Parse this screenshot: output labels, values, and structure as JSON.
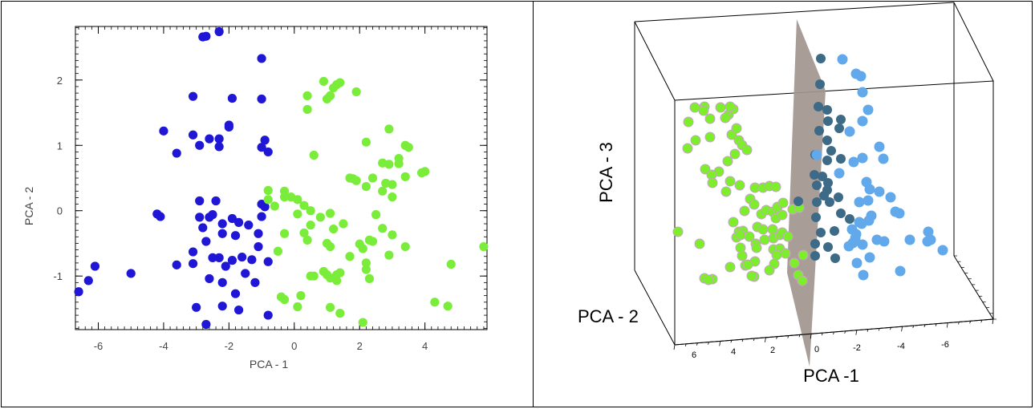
{
  "chart_data": [
    {
      "type": "scatter",
      "xlabel": "PCA - 1",
      "ylabel": "PCA - 2",
      "xlim": [
        -6.7,
        5.9
      ],
      "ylim": [
        -1.82,
        2.82
      ],
      "x_ticks": [
        -6,
        -4,
        -2,
        0,
        2,
        4
      ],
      "y_ticks": [
        -1,
        0,
        1,
        2
      ],
      "grid": false,
      "colors": [
        "#1f16d6",
        "#7aec3a"
      ],
      "series": [
        {
          "color": "#1f16d6",
          "points": [
            [
              -2.7,
              2.67
            ],
            [
              -2.8,
              2.66
            ],
            [
              -2.3,
              2.74
            ],
            [
              -1.0,
              2.33
            ],
            [
              -3.1,
              1.75
            ],
            [
              -1.9,
              1.72
            ],
            [
              -1.0,
              1.71
            ],
            [
              -2.0,
              1.31
            ],
            [
              -2.0,
              1.28
            ],
            [
              -4.0,
              1.22
            ],
            [
              -3.1,
              1.16
            ],
            [
              -2.6,
              1.1
            ],
            [
              -2.3,
              1.1
            ],
            [
              -0.9,
              1.08
            ],
            [
              -2.9,
              1.0
            ],
            [
              -2.3,
              0.98
            ],
            [
              -1.0,
              0.97
            ],
            [
              -3.6,
              0.88
            ],
            [
              -0.8,
              0.9
            ],
            [
              -2.9,
              0.15
            ],
            [
              -2.4,
              0.15
            ],
            [
              -1.0,
              0.1
            ],
            [
              -0.9,
              0.06
            ],
            [
              -4.2,
              -0.05
            ],
            [
              -2.5,
              -0.06
            ],
            [
              -2.6,
              -0.1
            ],
            [
              -4.1,
              -0.09
            ],
            [
              -2.9,
              -0.1
            ],
            [
              -1.9,
              -0.12
            ],
            [
              -1.0,
              -0.09
            ],
            [
              -2.2,
              -0.2
            ],
            [
              -1.7,
              -0.18
            ],
            [
              -2.8,
              -0.26
            ],
            [
              -1.4,
              -0.22
            ],
            [
              -2.2,
              -0.35
            ],
            [
              -1.8,
              -0.38
            ],
            [
              -1.1,
              -0.35
            ],
            [
              -2.7,
              -0.47
            ],
            [
              -3.1,
              -0.63
            ],
            [
              -1.1,
              -0.55
            ],
            [
              -2.5,
              -0.72
            ],
            [
              -2.3,
              -0.72
            ],
            [
              -1.9,
              -0.76
            ],
            [
              -1.6,
              -0.71
            ],
            [
              -1.3,
              -0.75
            ],
            [
              -0.8,
              -0.78
            ],
            [
              -3.6,
              -0.83
            ],
            [
              -3.1,
              -0.81
            ],
            [
              -2.1,
              -0.85
            ],
            [
              -6.1,
              -0.85
            ],
            [
              -5.0,
              -0.96
            ],
            [
              -2.6,
              -1.04
            ],
            [
              -1.5,
              -0.96
            ],
            [
              -2.2,
              -1.1
            ],
            [
              -1.2,
              -1.1
            ],
            [
              -6.3,
              -1.07
            ],
            [
              -6.6,
              -1.24
            ],
            [
              -1.8,
              -1.27
            ],
            [
              -3.0,
              -1.48
            ],
            [
              -2.2,
              -1.46
            ],
            [
              -1.7,
              -1.52
            ],
            [
              -0.8,
              -1.6
            ],
            [
              -2.7,
              -1.74
            ]
          ]
        },
        {
          "color": "#7aec3a",
          "points": [
            [
              0.9,
              1.98
            ],
            [
              1.4,
              1.96
            ],
            [
              1.3,
              1.93
            ],
            [
              1.2,
              1.88
            ],
            [
              0.4,
              1.76
            ],
            [
              1.1,
              1.76
            ],
            [
              1.0,
              1.71
            ],
            [
              1.9,
              1.82
            ],
            [
              0.4,
              1.55
            ],
            [
              2.9,
              1.25
            ],
            [
              2.2,
              1.05
            ],
            [
              3.4,
              1.0
            ],
            [
              3.5,
              0.97
            ],
            [
              0.6,
              0.85
            ],
            [
              3.2,
              0.8
            ],
            [
              2.7,
              0.73
            ],
            [
              2.9,
              0.71
            ],
            [
              3.2,
              0.72
            ],
            [
              3.9,
              0.58
            ],
            [
              4.0,
              0.6
            ],
            [
              3.4,
              0.52
            ],
            [
              1.7,
              0.5
            ],
            [
              1.8,
              0.49
            ],
            [
              2.4,
              0.5
            ],
            [
              1.9,
              0.46
            ],
            [
              2.8,
              0.42
            ],
            [
              3.0,
              0.4
            ],
            [
              2.2,
              0.37
            ],
            [
              2.7,
              0.3
            ],
            [
              3.0,
              0.21
            ],
            [
              -0.8,
              0.31
            ],
            [
              -0.3,
              0.3
            ],
            [
              -0.3,
              0.21
            ],
            [
              -0.1,
              0.21
            ],
            [
              0.1,
              0.17
            ],
            [
              -0.8,
              0.17
            ],
            [
              0.3,
              0.08
            ],
            [
              -0.6,
              0.07
            ],
            [
              0.5,
              -0.0
            ],
            [
              0.1,
              -0.05
            ],
            [
              1.1,
              -0.04
            ],
            [
              2.5,
              -0.06
            ],
            [
              0.8,
              -0.1
            ],
            [
              1.5,
              -0.2
            ],
            [
              0.5,
              -0.22
            ],
            [
              1.2,
              -0.28
            ],
            [
              2.7,
              -0.27
            ],
            [
              0.3,
              -0.34
            ],
            [
              -0.3,
              -0.35
            ],
            [
              3.0,
              -0.37
            ],
            [
              0.4,
              -0.45
            ],
            [
              2.3,
              -0.45
            ],
            [
              2.4,
              -0.47
            ],
            [
              2.0,
              -0.51
            ],
            [
              1.0,
              -0.5
            ],
            [
              1.1,
              -0.55
            ],
            [
              2.1,
              -0.58
            ],
            [
              3.4,
              -0.55
            ],
            [
              5.8,
              -0.55
            ],
            [
              -0.5,
              -0.62
            ],
            [
              2.9,
              -0.68
            ],
            [
              1.7,
              -0.7
            ],
            [
              2.2,
              -0.8
            ],
            [
              4.8,
              -0.82
            ],
            [
              2.2,
              -0.9
            ],
            [
              0.9,
              -0.93
            ],
            [
              1.4,
              -0.95
            ],
            [
              1.0,
              -0.98
            ],
            [
              1.3,
              -0.98
            ],
            [
              0.6,
              -1.0
            ],
            [
              0.5,
              -1.0
            ],
            [
              1.1,
              -1.03
            ],
            [
              2.3,
              -1.04
            ],
            [
              1.3,
              -1.07
            ],
            [
              0.2,
              -1.3
            ],
            [
              -0.4,
              -1.32
            ],
            [
              -0.3,
              -1.36
            ],
            [
              0.1,
              -1.47
            ],
            [
              1.1,
              -1.48
            ],
            [
              1.4,
              -1.57
            ],
            [
              4.3,
              -1.4
            ],
            [
              4.7,
              -1.46
            ],
            [
              2.1,
              -1.71
            ]
          ]
        }
      ]
    },
    {
      "type": "scatter",
      "xlabel": "PCA -1",
      "ylabel": "PCA - 3",
      "zlabel": "PCA - 2",
      "x_tick_labels": [
        "6",
        "4",
        "2",
        "0",
        "-2",
        "-4",
        "-6"
      ],
      "colors": [
        "#7dee2a",
        "#3d6a86",
        "#61a9ea"
      ],
      "separating_plane_color": "#a39690"
    }
  ]
}
